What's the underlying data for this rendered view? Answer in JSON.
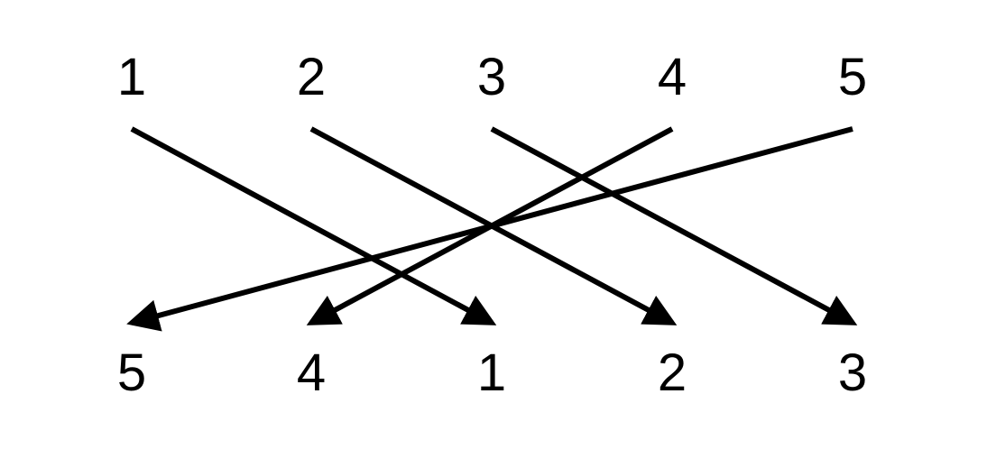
{
  "top_row": [
    "1",
    "2",
    "3",
    "4",
    "5"
  ],
  "bottom_row": [
    "5",
    "4",
    "1",
    "2",
    "3"
  ],
  "mappings": [
    {
      "from": "1",
      "to": "1"
    },
    {
      "from": "2",
      "to": "2"
    },
    {
      "from": "3",
      "to": "3"
    },
    {
      "from": "4",
      "to": "4"
    },
    {
      "from": "5",
      "to": "5"
    }
  ],
  "colors": {
    "stroke": "#000000",
    "text": "#000000",
    "background": "#ffffff"
  }
}
